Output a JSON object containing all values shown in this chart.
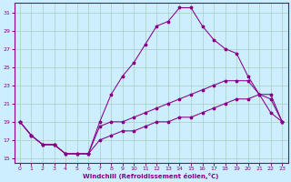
{
  "xlabel": "Windchill (Refroidissement éolien,°C)",
  "background_color": "#cceeff",
  "grid_color": "#aaccbb",
  "line_color": "#880088",
  "hours": [
    0,
    1,
    2,
    3,
    4,
    5,
    6,
    7,
    8,
    9,
    10,
    11,
    12,
    13,
    14,
    15,
    16,
    17,
    18,
    19,
    20,
    21,
    22,
    23
  ],
  "line_upper": [
    19,
    17.5,
    16.5,
    16.5,
    15.5,
    15.5,
    15.5,
    19,
    22,
    24,
    25.5,
    27.5,
    29.5,
    30,
    31.5,
    31.5,
    29.5,
    28,
    27,
    26.5,
    24,
    22,
    20,
    19
  ],
  "line_mid": [
    19,
    17.5,
    16.5,
    16.5,
    15.5,
    15.5,
    15.5,
    18.5,
    19,
    19,
    19.5,
    20,
    20.5,
    21,
    21.5,
    22,
    22.5,
    23,
    23.5,
    23.5,
    23.5,
    22,
    21.5,
    19
  ],
  "line_lower": [
    19,
    17.5,
    16.5,
    16.5,
    15.5,
    15.5,
    15.5,
    17,
    17.5,
    18,
    18,
    18.5,
    19,
    19,
    19.5,
    19.5,
    20,
    20.5,
    21,
    21.5,
    21.5,
    22,
    22,
    19
  ],
  "ylim_min": 14.5,
  "ylim_max": 32,
  "yticks": [
    15,
    17,
    19,
    21,
    23,
    25,
    27,
    29,
    31
  ],
  "xlim_min": -0.5,
  "xlim_max": 23.5
}
